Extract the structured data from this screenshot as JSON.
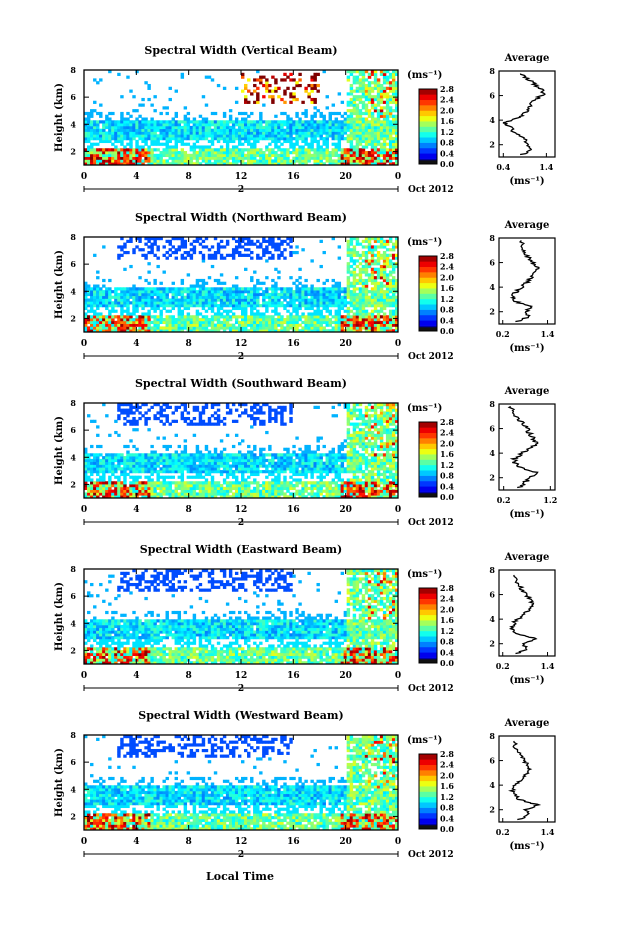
{
  "figure": {
    "xlabel": "Local Time",
    "date_label": "Oct 2012",
    "colorbar_unit": "(ms⁻¹)",
    "avg_title": "Average",
    "avg_xlabel": "(ms⁻¹)"
  },
  "chart_data": [
    {
      "type": "heatmap",
      "title": "Spectral Width (Vertical Beam)",
      "ylabel": "Height (km)",
      "x_ticks": [
        "0",
        "4",
        "8",
        "12",
        "16",
        "20",
        "0"
      ],
      "day_label": "2",
      "y_ticks": [
        "2",
        "4",
        "6",
        "8"
      ],
      "xlim": [
        0,
        24
      ],
      "ylim": [
        1,
        8
      ],
      "colorbar": {
        "ticks": [
          "0.0",
          "0.4",
          "0.8",
          "1.2",
          "1.6",
          "2.0",
          "2.4",
          "2.8"
        ],
        "range": [
          0,
          2.8
        ]
      },
      "average": {
        "x_ticks": [
          "0.4",
          "1.4"
        ],
        "xlim": [
          0.3,
          1.6
        ],
        "profile": [
          [
            1.2,
            0.85
          ],
          [
            1.6,
            1.05
          ],
          [
            2.0,
            0.95
          ],
          [
            2.4,
            0.9
          ],
          [
            2.8,
            0.75
          ],
          [
            3.2,
            0.6
          ],
          [
            3.6,
            0.5
          ],
          [
            3.8,
            0.45
          ],
          [
            4.0,
            0.6
          ],
          [
            4.3,
            0.8
          ],
          [
            4.6,
            0.9
          ],
          [
            5.0,
            1.0
          ],
          [
            5.4,
            1.05
          ],
          [
            5.8,
            1.2
          ],
          [
            6.2,
            1.35
          ],
          [
            6.6,
            1.25
          ],
          [
            7.0,
            1.1
          ],
          [
            7.4,
            0.95
          ],
          [
            7.8,
            0.8
          ]
        ]
      }
    },
    {
      "type": "heatmap",
      "title": "Spectral Width (Northward Beam)",
      "ylabel": "Height (km)",
      "x_ticks": [
        "0",
        "4",
        "8",
        "12",
        "16",
        "20",
        "0"
      ],
      "day_label": "2",
      "y_ticks": [
        "2",
        "4",
        "6",
        "8"
      ],
      "xlim": [
        0,
        24
      ],
      "ylim": [
        1,
        8
      ],
      "colorbar": {
        "ticks": [
          "0.0",
          "0.4",
          "0.8",
          "1.2",
          "1.6",
          "2.0",
          "2.4",
          "2.8"
        ],
        "range": [
          0,
          2.8
        ]
      },
      "average": {
        "x_ticks": [
          "0.2",
          "1.4"
        ],
        "xlim": [
          0.1,
          1.6
        ],
        "profile": [
          [
            1.2,
            0.6
          ],
          [
            1.6,
            0.9
          ],
          [
            2.0,
            0.8
          ],
          [
            2.4,
            1.0
          ],
          [
            2.6,
            0.75
          ],
          [
            2.9,
            0.5
          ],
          [
            3.2,
            0.45
          ],
          [
            3.6,
            0.55
          ],
          [
            4.0,
            0.7
          ],
          [
            4.4,
            0.85
          ],
          [
            4.8,
            0.95
          ],
          [
            5.2,
            1.05
          ],
          [
            5.6,
            1.15
          ],
          [
            6.0,
            1.0
          ],
          [
            6.4,
            0.9
          ],
          [
            6.8,
            0.8
          ],
          [
            7.2,
            0.75
          ],
          [
            7.8,
            0.7
          ]
        ]
      }
    },
    {
      "type": "heatmap",
      "title": "Spectral Width (Southward Beam)",
      "ylabel": "Height (km)",
      "x_ticks": [
        "0",
        "4",
        "8",
        "12",
        "16",
        "20",
        "0"
      ],
      "day_label": "2",
      "y_ticks": [
        "2",
        "4",
        "6",
        "8"
      ],
      "xlim": [
        0,
        24
      ],
      "ylim": [
        1,
        8
      ],
      "colorbar": {
        "ticks": [
          "0.0",
          "0.4",
          "0.8",
          "1.2",
          "1.6",
          "2.0",
          "2.4",
          "2.8"
        ],
        "range": [
          0,
          2.8
        ]
      },
      "average": {
        "x_ticks": [
          "0.2",
          "1.2"
        ],
        "xlim": [
          0.1,
          1.3
        ],
        "profile": [
          [
            1.2,
            0.55
          ],
          [
            1.6,
            0.65
          ],
          [
            2.0,
            0.75
          ],
          [
            2.4,
            0.95
          ],
          [
            2.6,
            0.7
          ],
          [
            3.0,
            0.5
          ],
          [
            3.3,
            0.4
          ],
          [
            3.6,
            0.45
          ],
          [
            4.0,
            0.6
          ],
          [
            4.4,
            0.75
          ],
          [
            4.8,
            0.9
          ],
          [
            5.2,
            0.85
          ],
          [
            5.6,
            0.75
          ],
          [
            6.0,
            0.7
          ],
          [
            6.4,
            0.6
          ],
          [
            6.8,
            0.5
          ],
          [
            7.4,
            0.4
          ],
          [
            7.8,
            0.35
          ]
        ]
      }
    },
    {
      "type": "heatmap",
      "title": "Spectral Width (Eastward Beam)",
      "ylabel": "Height (km)",
      "x_ticks": [
        "0",
        "4",
        "8",
        "12",
        "16",
        "20",
        "0"
      ],
      "day_label": "2",
      "y_ticks": [
        "2",
        "4",
        "6",
        "8"
      ],
      "xlim": [
        0,
        24
      ],
      "ylim": [
        1,
        8
      ],
      "colorbar": {
        "ticks": [
          "0.0",
          "0.4",
          "0.8",
          "1.2",
          "1.6",
          "2.0",
          "2.4",
          "2.8"
        ],
        "range": [
          0,
          2.8
        ]
      },
      "average": {
        "x_ticks": [
          "0.2",
          "1.4"
        ],
        "xlim": [
          0.1,
          1.6
        ],
        "profile": [
          [
            1.2,
            0.6
          ],
          [
            1.6,
            0.85
          ],
          [
            2.0,
            0.75
          ],
          [
            2.4,
            1.1
          ],
          [
            2.6,
            0.8
          ],
          [
            2.9,
            0.55
          ],
          [
            3.3,
            0.45
          ],
          [
            3.7,
            0.5
          ],
          [
            4.1,
            0.65
          ],
          [
            4.5,
            0.8
          ],
          [
            4.9,
            0.95
          ],
          [
            5.3,
            1.0
          ],
          [
            5.7,
            0.9
          ],
          [
            6.1,
            0.8
          ],
          [
            6.5,
            0.7
          ],
          [
            7.0,
            0.6
          ],
          [
            7.6,
            0.5
          ]
        ]
      }
    },
    {
      "type": "heatmap",
      "title": "Spectral Width (Westward Beam)",
      "ylabel": "Height (km)",
      "x_ticks": [
        "0",
        "4",
        "8",
        "12",
        "16",
        "20",
        "0"
      ],
      "day_label": "2",
      "y_ticks": [
        "2",
        "4",
        "6",
        "8"
      ],
      "xlim": [
        0,
        24
      ],
      "ylim": [
        1,
        8
      ],
      "colorbar": {
        "ticks": [
          "0.0",
          "0.4",
          "0.8",
          "1.2",
          "1.6",
          "2.0",
          "2.4",
          "2.8"
        ],
        "range": [
          0,
          2.8
        ]
      },
      "average": {
        "x_ticks": [
          "0.2",
          "1.4"
        ],
        "xlim": [
          0.1,
          1.6
        ],
        "profile": [
          [
            1.2,
            0.65
          ],
          [
            1.6,
            0.9
          ],
          [
            2.0,
            0.8
          ],
          [
            2.4,
            1.15
          ],
          [
            2.6,
            0.85
          ],
          [
            2.9,
            0.6
          ],
          [
            3.3,
            0.5
          ],
          [
            3.7,
            0.45
          ],
          [
            4.1,
            0.55
          ],
          [
            4.5,
            0.7
          ],
          [
            4.9,
            0.85
          ],
          [
            5.3,
            0.9
          ],
          [
            5.7,
            0.85
          ],
          [
            6.1,
            0.75
          ],
          [
            6.5,
            0.65
          ],
          [
            7.0,
            0.55
          ],
          [
            7.6,
            0.5
          ]
        ]
      }
    }
  ]
}
